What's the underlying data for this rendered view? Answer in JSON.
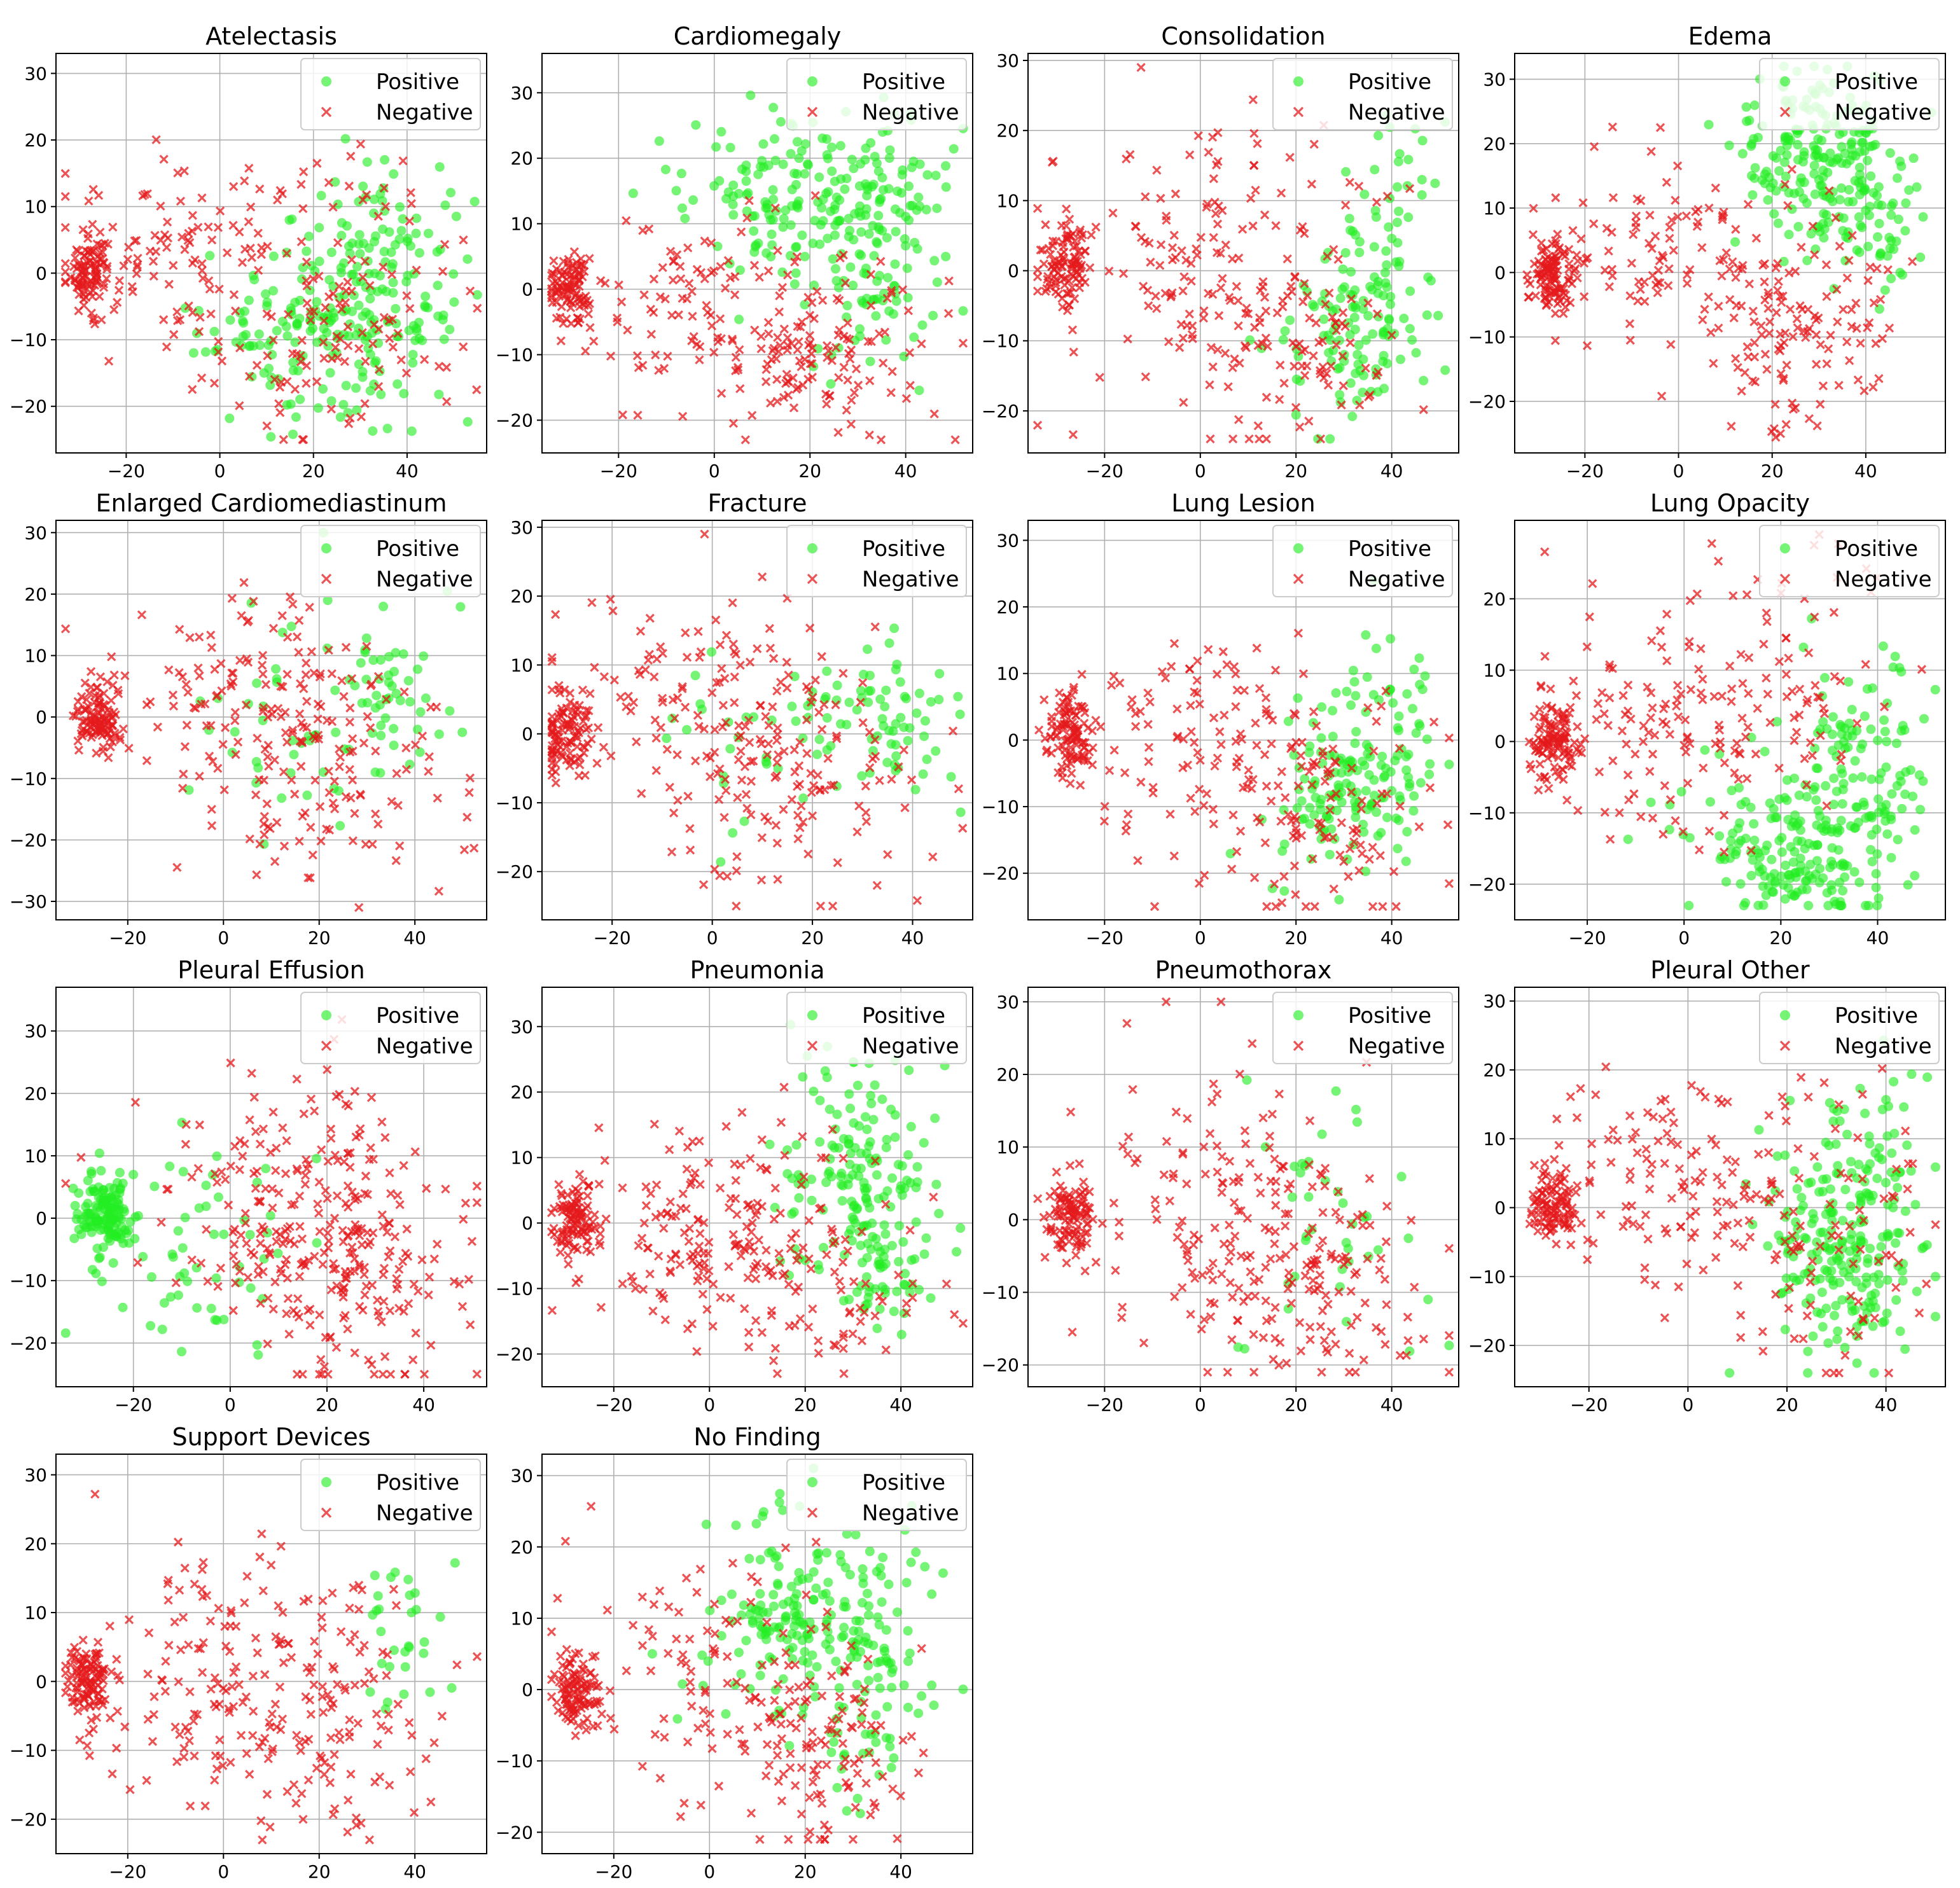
{
  "figure_title": "t-SNE embeddings per pathology label",
  "legend": {
    "positive": "Positive",
    "negative": "Negative"
  },
  "colors": {
    "positive": "#22ee22",
    "negative": "#e41a1c",
    "grid": "#b0b0b0"
  },
  "chart_data": [
    {
      "type": "scatter",
      "title": "Atelectasis",
      "xlim": [
        -35,
        57
      ],
      "ylim": [
        -27,
        33
      ],
      "xticks": [
        -20,
        0,
        20,
        40
      ],
      "yticks": [
        -20,
        -10,
        0,
        10,
        20,
        30
      ],
      "seed": 1,
      "pos_clusters": [
        {
          "cx": 28,
          "cy": -8,
          "sx": 11,
          "sy": 8,
          "n": 190
        },
        {
          "cx": 35,
          "cy": 7,
          "sx": 7,
          "sy": 6,
          "n": 45
        },
        {
          "cx": 5,
          "cy": -8,
          "sx": 10,
          "sy": 6,
          "n": 30
        }
      ],
      "neg_clusters": [
        {
          "cx": -28,
          "cy": 0,
          "sx": 2.5,
          "sy": 3,
          "n": 100
        },
        {
          "cx": -5,
          "cy": 2,
          "sx": 14,
          "sy": 8,
          "n": 110
        },
        {
          "cx": 25,
          "cy": -5,
          "sx": 13,
          "sy": 12,
          "n": 120
        }
      ]
    },
    {
      "type": "scatter",
      "title": "Cardiomegaly",
      "xlim": [
        -36,
        54
      ],
      "ylim": [
        -25,
        36
      ],
      "xticks": [
        -20,
        0,
        20,
        40
      ],
      "yticks": [
        -20,
        -10,
        0,
        10,
        20,
        30
      ],
      "seed": 2,
      "pos_clusters": [
        {
          "cx": 18,
          "cy": 14,
          "sx": 14,
          "sy": 6,
          "n": 170
        },
        {
          "cx": 38,
          "cy": 10,
          "sx": 7,
          "sy": 8,
          "n": 60
        },
        {
          "cx": 30,
          "cy": -3,
          "sx": 10,
          "sy": 6,
          "n": 40
        }
      ],
      "neg_clusters": [
        {
          "cx": -30,
          "cy": 0,
          "sx": 2.5,
          "sy": 3,
          "n": 100
        },
        {
          "cx": -3,
          "cy": -2,
          "sx": 13,
          "sy": 7,
          "n": 100
        },
        {
          "cx": 25,
          "cy": -10,
          "sx": 12,
          "sy": 7,
          "n": 120
        }
      ]
    },
    {
      "type": "scatter",
      "title": "Consolidation",
      "xlim": [
        -36,
        54
      ],
      "ylim": [
        -26,
        31
      ],
      "xticks": [
        -20,
        0,
        20,
        40
      ],
      "yticks": [
        -20,
        -10,
        0,
        10,
        20,
        30
      ],
      "seed": 3,
      "pos_clusters": [
        {
          "cx": 33,
          "cy": -7,
          "sx": 8,
          "sy": 7,
          "n": 120
        },
        {
          "cx": 42,
          "cy": 10,
          "sx": 5,
          "sy": 6,
          "n": 30
        }
      ],
      "neg_clusters": [
        {
          "cx": -28,
          "cy": 1,
          "sx": 2.5,
          "sy": 3,
          "n": 100
        },
        {
          "cx": -2,
          "cy": 3,
          "sx": 14,
          "sy": 10,
          "n": 130
        },
        {
          "cx": 20,
          "cy": -10,
          "sx": 12,
          "sy": 8,
          "n": 100
        }
      ]
    },
    {
      "type": "scatter",
      "title": "Edema",
      "xlim": [
        -35,
        57
      ],
      "ylim": [
        -28,
        34
      ],
      "xticks": [
        -20,
        0,
        20,
        40
      ],
      "yticks": [
        -20,
        -10,
        0,
        10,
        20,
        30
      ],
      "seed": 4,
      "pos_clusters": [
        {
          "cx": 30,
          "cy": 18,
          "sx": 8,
          "sy": 7,
          "n": 200
        },
        {
          "cx": 42,
          "cy": 8,
          "sx": 6,
          "sy": 6,
          "n": 50
        }
      ],
      "neg_clusters": [
        {
          "cx": -27,
          "cy": 0,
          "sx": 2.5,
          "sy": 3,
          "n": 110
        },
        {
          "cx": -5,
          "cy": 3,
          "sx": 13,
          "sy": 7,
          "n": 100
        },
        {
          "cx": 25,
          "cy": -8,
          "sx": 10,
          "sy": 9,
          "n": 130
        }
      ]
    },
    {
      "type": "scatter",
      "title": "Enlarged Cardiomediastinum",
      "xlim": [
        -35,
        55
      ],
      "ylim": [
        -33,
        32
      ],
      "xticks": [
        -20,
        0,
        20,
        40
      ],
      "yticks": [
        -30,
        -20,
        -10,
        0,
        10,
        20,
        30
      ],
      "seed": 5,
      "pos_clusters": [
        {
          "cx": 33,
          "cy": 3,
          "sx": 9,
          "sy": 8,
          "n": 60
        },
        {
          "cx": 15,
          "cy": -2,
          "sx": 12,
          "sy": 8,
          "n": 30
        }
      ],
      "neg_clusters": [
        {
          "cx": -26,
          "cy": 0,
          "sx": 2.5,
          "sy": 3,
          "n": 110
        },
        {
          "cx": 5,
          "cy": 2,
          "sx": 14,
          "sy": 10,
          "n": 120
        },
        {
          "cx": 25,
          "cy": -10,
          "sx": 12,
          "sy": 10,
          "n": 100
        }
      ]
    },
    {
      "type": "scatter",
      "title": "Fracture",
      "xlim": [
        -34,
        52
      ],
      "ylim": [
        -27,
        31
      ],
      "xticks": [
        -20,
        0,
        20,
        40
      ],
      "yticks": [
        -20,
        -10,
        0,
        10,
        20,
        30
      ],
      "seed": 6,
      "pos_clusters": [
        {
          "cx": 33,
          "cy": 2,
          "sx": 9,
          "sy": 5,
          "n": 70
        },
        {
          "cx": 10,
          "cy": -3,
          "sx": 12,
          "sy": 7,
          "n": 30
        }
      ],
      "neg_clusters": [
        {
          "cx": -29,
          "cy": 0,
          "sx": 2.5,
          "sy": 3,
          "n": 100
        },
        {
          "cx": 0,
          "cy": 3,
          "sx": 14,
          "sy": 9,
          "n": 130
        },
        {
          "cx": 20,
          "cy": -8,
          "sx": 12,
          "sy": 10,
          "n": 100
        }
      ]
    },
    {
      "type": "scatter",
      "title": "Lung Lesion",
      "xlim": [
        -36,
        54
      ],
      "ylim": [
        -27,
        33
      ],
      "xticks": [
        -20,
        0,
        20,
        40
      ],
      "yticks": [
        -20,
        -10,
        0,
        10,
        20,
        30
      ],
      "seed": 7,
      "pos_clusters": [
        {
          "cx": 30,
          "cy": -7,
          "sx": 8,
          "sy": 6,
          "n": 140
        },
        {
          "cx": 40,
          "cy": 6,
          "sx": 5,
          "sy": 6,
          "n": 30
        }
      ],
      "neg_clusters": [
        {
          "cx": -27,
          "cy": 1,
          "sx": 2.5,
          "sy": 3,
          "n": 110
        },
        {
          "cx": 0,
          "cy": 0,
          "sx": 13,
          "sy": 9,
          "n": 110
        },
        {
          "cx": 25,
          "cy": -10,
          "sx": 12,
          "sy": 9,
          "n": 100
        }
      ]
    },
    {
      "type": "scatter",
      "title": "Lung Opacity",
      "xlim": [
        -35,
        54
      ],
      "ylim": [
        -25,
        31
      ],
      "xticks": [
        -20,
        0,
        20,
        40
      ],
      "yticks": [
        -20,
        -10,
        0,
        10,
        20
      ],
      "seed": 8,
      "pos_clusters": [
        {
          "cx": 22,
          "cy": -17,
          "sx": 7,
          "sy": 4,
          "n": 110
        },
        {
          "cx": 35,
          "cy": -5,
          "sx": 7,
          "sy": 8,
          "n": 150
        },
        {
          "cx": 10,
          "cy": -14,
          "sx": 8,
          "sy": 5,
          "n": 30
        }
      ],
      "neg_clusters": [
        {
          "cx": -27,
          "cy": 0,
          "sx": 2.5,
          "sy": 3,
          "n": 110
        },
        {
          "cx": -5,
          "cy": 3,
          "sx": 13,
          "sy": 8,
          "n": 110
        },
        {
          "cx": 22,
          "cy": 8,
          "sx": 10,
          "sy": 10,
          "n": 70
        }
      ]
    },
    {
      "type": "scatter",
      "title": "Pleural Effusion",
      "xlim": [
        -36,
        53
      ],
      "ylim": [
        -27,
        37
      ],
      "xticks": [
        -20,
        0,
        20,
        40
      ],
      "yticks": [
        -20,
        -10,
        0,
        10,
        20,
        30
      ],
      "seed": 9,
      "pos_clusters": [
        {
          "cx": -26,
          "cy": 1,
          "sx": 3,
          "sy": 3,
          "n": 130
        },
        {
          "cx": -8,
          "cy": -5,
          "sx": 12,
          "sy": 8,
          "n": 60
        }
      ],
      "neg_clusters": [
        {
          "cx": 25,
          "cy": -5,
          "sx": 12,
          "sy": 11,
          "n": 220
        },
        {
          "cx": 5,
          "cy": 5,
          "sx": 14,
          "sy": 10,
          "n": 90
        }
      ]
    },
    {
      "type": "scatter",
      "title": "Pneumonia",
      "xlim": [
        -35,
        55
      ],
      "ylim": [
        -25,
        36
      ],
      "xticks": [
        -20,
        0,
        20,
        40
      ],
      "yticks": [
        -20,
        -10,
        0,
        10,
        20,
        30
      ],
      "seed": 10,
      "pos_clusters": [
        {
          "cx": 30,
          "cy": 8,
          "sx": 9,
          "sy": 9,
          "n": 150
        },
        {
          "cx": 37,
          "cy": -7,
          "sx": 5,
          "sy": 5,
          "n": 50
        }
      ],
      "neg_clusters": [
        {
          "cx": -28,
          "cy": 0,
          "sx": 2.5,
          "sy": 3,
          "n": 110
        },
        {
          "cx": 0,
          "cy": 0,
          "sx": 13,
          "sy": 9,
          "n": 130
        },
        {
          "cx": 20,
          "cy": -10,
          "sx": 12,
          "sy": 8,
          "n": 100
        }
      ]
    },
    {
      "type": "scatter",
      "title": "Pneumothorax",
      "xlim": [
        -36,
        54
      ],
      "ylim": [
        -23,
        32
      ],
      "xticks": [
        -20,
        0,
        20,
        40
      ],
      "yticks": [
        -20,
        -10,
        0,
        10,
        20,
        30
      ],
      "seed": 11,
      "pos_clusters": [
        {
          "cx": 28,
          "cy": -2,
          "sx": 12,
          "sy": 9,
          "n": 40
        }
      ],
      "neg_clusters": [
        {
          "cx": -27,
          "cy": 0,
          "sx": 2.5,
          "sy": 3,
          "n": 110
        },
        {
          "cx": 5,
          "cy": 3,
          "sx": 14,
          "sy": 10,
          "n": 130
        },
        {
          "cx": 25,
          "cy": -10,
          "sx": 12,
          "sy": 7,
          "n": 110
        }
      ]
    },
    {
      "type": "scatter",
      "title": "Pleural Other",
      "xlim": [
        -35,
        52
      ],
      "ylim": [
        -26,
        32
      ],
      "xticks": [
        -20,
        0,
        20,
        40
      ],
      "yticks": [
        -20,
        -10,
        0,
        10,
        20,
        30
      ],
      "seed": 12,
      "pos_clusters": [
        {
          "cx": 30,
          "cy": -6,
          "sx": 8,
          "sy": 8,
          "n": 220
        },
        {
          "cx": 40,
          "cy": 8,
          "sx": 5,
          "sy": 6,
          "n": 30
        }
      ],
      "neg_clusters": [
        {
          "cx": -27,
          "cy": 0,
          "sx": 2.5,
          "sy": 3,
          "n": 110
        },
        {
          "cx": 0,
          "cy": 4,
          "sx": 13,
          "sy": 8,
          "n": 110
        },
        {
          "cx": 28,
          "cy": -5,
          "sx": 10,
          "sy": 10,
          "n": 90
        }
      ]
    },
    {
      "type": "scatter",
      "title": "Support Devices",
      "xlim": [
        -35,
        55
      ],
      "ylim": [
        -25,
        33
      ],
      "xticks": [
        -20,
        0,
        20,
        40
      ],
      "yticks": [
        -20,
        -10,
        0,
        10,
        20,
        30
      ],
      "seed": 13,
      "pos_clusters": [
        {
          "cx": 38,
          "cy": 8,
          "sx": 6,
          "sy": 6,
          "n": 30
        }
      ],
      "neg_clusters": [
        {
          "cx": -28,
          "cy": 0,
          "sx": 2.5,
          "sy": 3,
          "n": 110
        },
        {
          "cx": 0,
          "cy": 0,
          "sx": 13,
          "sy": 9,
          "n": 130
        },
        {
          "cx": 25,
          "cy": -5,
          "sx": 12,
          "sy": 10,
          "n": 110
        }
      ]
    },
    {
      "type": "scatter",
      "title": "No Finding",
      "xlim": [
        -35,
        55
      ],
      "ylim": [
        -23,
        33
      ],
      "xticks": [
        -20,
        0,
        20,
        40
      ],
      "yticks": [
        -20,
        -10,
        0,
        10,
        20,
        30
      ],
      "seed": 14,
      "pos_clusters": [
        {
          "cx": 20,
          "cy": 10,
          "sx": 12,
          "sy": 7,
          "n": 200
        },
        {
          "cx": 35,
          "cy": -4,
          "sx": 7,
          "sy": 7,
          "n": 50
        }
      ],
      "neg_clusters": [
        {
          "cx": -28,
          "cy": 0,
          "sx": 2.5,
          "sy": 3,
          "n": 110
        },
        {
          "cx": 0,
          "cy": 2,
          "sx": 13,
          "sy": 9,
          "n": 110
        },
        {
          "cx": 25,
          "cy": -10,
          "sx": 10,
          "sy": 7,
          "n": 90
        }
      ]
    }
  ]
}
